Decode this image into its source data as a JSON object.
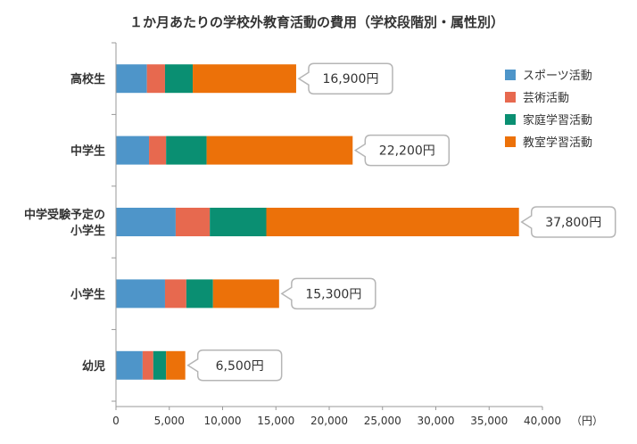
{
  "chart_data": {
    "type": "bar",
    "orientation": "horizontal",
    "stacked": true,
    "title": "１か月あたりの学校外教育活動の費用（学校段階別・属性別）",
    "categories": [
      "高校生",
      "中学生",
      "中学受験予定の小学生",
      "小学生",
      "幼児"
    ],
    "category_lines": [
      [
        "高校生"
      ],
      [
        "中学生"
      ],
      [
        "中学受験予定の",
        "小学生"
      ],
      [
        "小学生"
      ],
      [
        "幼児"
      ]
    ],
    "series": [
      {
        "name": "スポーツ活動",
        "color": "#4e95c9",
        "values": [
          2900,
          3100,
          5600,
          4600,
          2500
        ]
      },
      {
        "name": "芸術活動",
        "color": "#e7694f",
        "values": [
          1700,
          1600,
          3200,
          2000,
          1000
        ]
      },
      {
        "name": "家庭学習活動",
        "color": "#0a8f72",
        "values": [
          2600,
          3800,
          5300,
          2500,
          1200
        ]
      },
      {
        "name": "教室学習活動",
        "color": "#ec7109",
        "values": [
          9700,
          13700,
          23700,
          6200,
          1800
        ]
      }
    ],
    "totals": [
      "16,900円",
      "22,200円",
      "37,800円",
      "15,300円",
      "6,500円"
    ],
    "xlim": [
      0,
      40000
    ],
    "xticks": [
      0,
      5000,
      10000,
      15000,
      20000,
      25000,
      30000,
      35000,
      40000
    ],
    "xtick_labels": [
      "0",
      "5,000",
      "10,000",
      "15,000",
      "20,000",
      "25,000",
      "30,000",
      "35,000",
      "40,000"
    ],
    "xunit": "（円）",
    "legend_position": "top-right",
    "grid": false
  }
}
